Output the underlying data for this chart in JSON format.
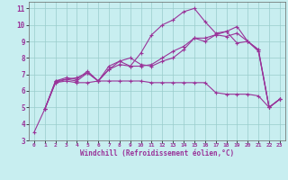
{
  "xlabel": "Windchill (Refroidissement éolien,°C)",
  "bg_color": "#c8eef0",
  "line_color": "#993399",
  "grid_color": "#99cccc",
  "xlim": [
    -0.5,
    23.5
  ],
  "ylim": [
    3,
    11.4
  ],
  "xticks": [
    0,
    1,
    2,
    3,
    4,
    5,
    6,
    7,
    8,
    9,
    10,
    11,
    12,
    13,
    14,
    15,
    16,
    17,
    18,
    19,
    20,
    21,
    22,
    23
  ],
  "yticks": [
    3,
    4,
    5,
    6,
    7,
    8,
    9,
    10,
    11
  ],
  "lines": [
    {
      "x": [
        0,
        1,
        2,
        3,
        4,
        5,
        6,
        7,
        8,
        9,
        10,
        11,
        12,
        13,
        14,
        15,
        16,
        17,
        18,
        19,
        20,
        21,
        22,
        23
      ],
      "y": [
        3.5,
        4.9,
        6.6,
        6.7,
        6.6,
        7.1,
        6.6,
        7.5,
        7.8,
        7.5,
        8.3,
        9.4,
        10.0,
        10.3,
        10.8,
        11.0,
        10.2,
        9.5,
        9.6,
        9.9,
        9.0,
        8.5,
        5.0,
        5.5
      ]
    },
    {
      "x": [
        1,
        2,
        3,
        4,
        5,
        6,
        7,
        8,
        9,
        10,
        11,
        12,
        13,
        14,
        15,
        16,
        17,
        18,
        19,
        20,
        21,
        22,
        23
      ],
      "y": [
        4.9,
        6.6,
        6.8,
        6.7,
        7.2,
        6.6,
        7.3,
        7.6,
        7.5,
        7.5,
        7.6,
        8.0,
        8.4,
        8.7,
        9.2,
        9.2,
        9.4,
        9.6,
        8.9,
        9.0,
        8.5,
        5.0,
        5.5
      ]
    },
    {
      "x": [
        1,
        2,
        3,
        4,
        5,
        6,
        7,
        8,
        9,
        10,
        11,
        12,
        13,
        14,
        15,
        16,
        17,
        18,
        19,
        20,
        21,
        22,
        23
      ],
      "y": [
        4.9,
        6.5,
        6.6,
        6.5,
        6.5,
        6.6,
        6.6,
        6.6,
        6.6,
        6.6,
        6.5,
        6.5,
        6.5,
        6.5,
        6.5,
        6.5,
        5.9,
        5.8,
        5.8,
        5.8,
        5.7,
        5.0,
        5.5
      ]
    },
    {
      "x": [
        1,
        2,
        3,
        4,
        5,
        6,
        7,
        8,
        9,
        10,
        11,
        12,
        13,
        14,
        15,
        16,
        17,
        18,
        19,
        20,
        21,
        22,
        23
      ],
      "y": [
        4.9,
        6.5,
        6.7,
        6.8,
        7.1,
        6.6,
        7.3,
        7.8,
        8.0,
        7.6,
        7.5,
        7.8,
        8.0,
        8.5,
        9.2,
        9.0,
        9.4,
        9.3,
        9.5,
        9.0,
        8.4,
        5.0,
        5.5
      ]
    }
  ]
}
